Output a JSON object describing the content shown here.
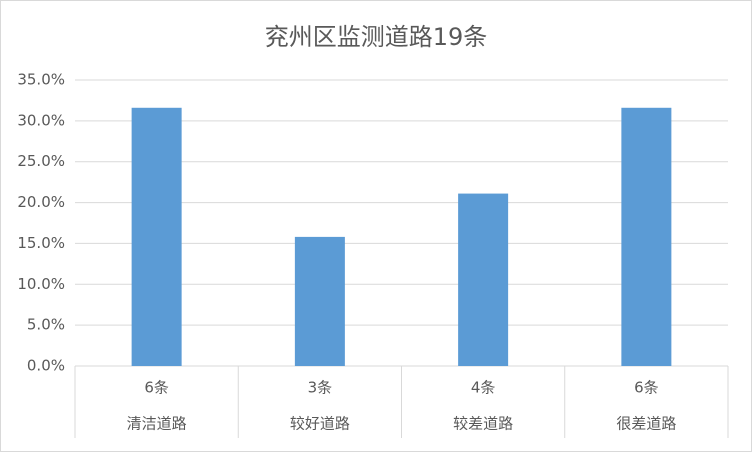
{
  "chart_data": {
    "type": "bar",
    "title": "兖州区监测道路19条",
    "categories": [
      "清洁道路",
      "较好道路",
      "较差道路",
      "很差道路"
    ],
    "category_counts": [
      "6条",
      "3条",
      "4条",
      "6条"
    ],
    "values": [
      31.6,
      15.8,
      21.1,
      31.6
    ],
    "color": "#5b9bd5",
    "ylim": [
      0,
      35
    ],
    "yticks": [
      {
        "value": 0,
        "label": "0.0%"
      },
      {
        "value": 5,
        "label": "5.0%"
      },
      {
        "value": 10,
        "label": "10.0%"
      },
      {
        "value": 15,
        "label": "15.0%"
      },
      {
        "value": 20,
        "label": "20.0%"
      },
      {
        "value": 25,
        "label": "25.0%"
      },
      {
        "value": 30,
        "label": "30.0%"
      },
      {
        "value": 35,
        "label": "35.0%"
      }
    ],
    "grid": true
  }
}
